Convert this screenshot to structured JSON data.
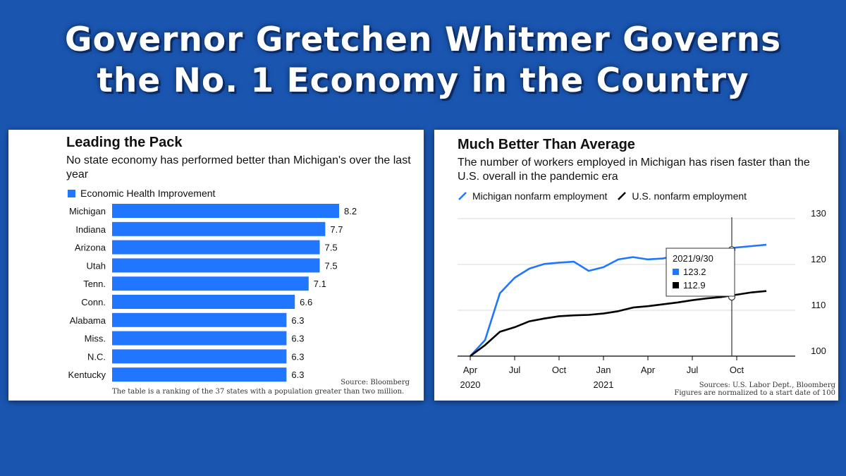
{
  "headline": {
    "line1": "Governor Gretchen Whitmer Governs",
    "line2": "the No. 1 Economy in the Country"
  },
  "colors": {
    "background": "#1a55b0",
    "bar": "#2176ff",
    "michigan_line": "#2176ff",
    "us_line": "#000000"
  },
  "left_panel": {
    "title": "Leading the Pack",
    "subtitle": "No state economy has performed better than Michigan's over the last year",
    "legend": "Economic Health Improvement",
    "source": "Source: Bloomberg",
    "note": "The table is a ranking of the 37 states with a population greater than two million."
  },
  "right_panel": {
    "title": "Much Better Than Average",
    "subtitle": "The number of workers employed in Michigan has risen faster than the U.S. overall in the pandemic era",
    "legend_mi": "Michigan nonfarm employment",
    "legend_us": "U.S. nonfarm employment",
    "source": "Sources: U.S. Labor Dept., Bloomberg",
    "note": "Figures are normalized to a start date of 100",
    "tooltip": {
      "date": "2021/9/30",
      "mi_value": "123.2",
      "us_value": "112.9"
    }
  },
  "chart_data": [
    {
      "type": "bar",
      "orientation": "horizontal",
      "title": "Leading the Pack",
      "subtitle": "No state economy has performed better than Michigan's over the last year",
      "series_name": "Economic Health Improvement",
      "categories": [
        "Michigan",
        "Indiana",
        "Arizona",
        "Utah",
        "Tenn.",
        "Conn.",
        "Alabama",
        "Miss.",
        "N.C.",
        "Kentucky"
      ],
      "values": [
        8.2,
        7.7,
        7.5,
        7.5,
        7.1,
        6.6,
        6.3,
        6.3,
        6.3,
        6.3
      ],
      "value_labels": [
        "8.2",
        "7.7",
        "7.5",
        "7.5",
        "7.1",
        "6.6",
        "6.3",
        "6.3",
        "6.3",
        "6.3"
      ],
      "xlim": [
        0,
        8.2
      ]
    },
    {
      "type": "line",
      "title": "Much Better Than Average",
      "ylim": [
        100,
        130
      ],
      "yticks": [
        100,
        110,
        120,
        130
      ],
      "xlim": [
        "2020-04",
        "2022-01"
      ],
      "xticks": [
        {
          "date": "2020-04",
          "label": "Apr",
          "year": "2020"
        },
        {
          "date": "2020-07",
          "label": "Jul",
          "year": ""
        },
        {
          "date": "2020-10",
          "label": "Oct",
          "year": ""
        },
        {
          "date": "2021-01",
          "label": "Jan",
          "year": "2021"
        },
        {
          "date": "2021-04",
          "label": "Apr",
          "year": ""
        },
        {
          "date": "2021-07",
          "label": "Jul",
          "year": ""
        },
        {
          "date": "2021-10",
          "label": "Oct",
          "year": ""
        }
      ],
      "x": [
        "2020-04",
        "2020-05",
        "2020-06",
        "2020-07",
        "2020-08",
        "2020-09",
        "2020-10",
        "2020-11",
        "2020-12",
        "2021-01",
        "2021-02",
        "2021-03",
        "2021-04",
        "2021-05",
        "2021-06",
        "2021-07",
        "2021-08",
        "2021-09",
        "2021-10",
        "2021-11",
        "2021-12"
      ],
      "series": [
        {
          "name": "Michigan nonfarm employment",
          "values": [
            100,
            103.5,
            113.7,
            117.1,
            119.1,
            120.1,
            120.4,
            120.6,
            118.6,
            119.4,
            121.1,
            121.6,
            121.1,
            121.3,
            122.0,
            122.4,
            122.8,
            123.2,
            123.7,
            124.0,
            124.3
          ]
        },
        {
          "name": "U.S. nonfarm employment",
          "values": [
            100,
            102.4,
            105.3,
            106.3,
            107.6,
            108.2,
            108.7,
            108.9,
            109.0,
            109.3,
            109.8,
            110.6,
            110.9,
            111.3,
            111.7,
            112.2,
            112.6,
            112.9,
            113.4,
            113.9,
            114.2
          ]
        }
      ],
      "highlight": {
        "date": "2021-09-30",
        "values": [
          123.2,
          112.9
        ]
      }
    }
  ]
}
